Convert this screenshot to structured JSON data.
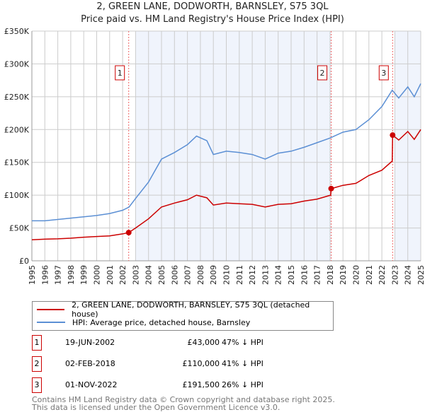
{
  "title": "2, GREEN LANE, DODWORTH, BARNSLEY, S75 3QL",
  "subtitle": "Price paid vs. HM Land Registry's House Price Index (HPI)",
  "chart_data": {
    "type": "line",
    "xlim": [
      1995,
      2025
    ],
    "ylim": [
      0,
      350000
    ],
    "yticks": [
      0,
      50000,
      100000,
      150000,
      200000,
      250000,
      300000,
      350000
    ],
    "ytick_labels": [
      "£0",
      "£50K",
      "£100K",
      "£150K",
      "£200K",
      "£250K",
      "£300K",
      "£350K"
    ],
    "xticks": [
      1995,
      1996,
      1997,
      1998,
      1999,
      2000,
      2001,
      2002,
      2003,
      2004,
      2005,
      2006,
      2007,
      2008,
      2009,
      2010,
      2011,
      2012,
      2013,
      2014,
      2015,
      2016,
      2017,
      2018,
      2019,
      2020,
      2021,
      2022,
      2023,
      2024,
      2025
    ],
    "grid": true,
    "shaded_periods": [
      [
        2003,
        2018.09
      ],
      [
        2023,
        2025
      ]
    ],
    "series": [
      {
        "name": "2, GREEN LANE, DODWORTH, BARNSLEY, S75 3QL (detached house)",
        "color": "#cc0000",
        "x": [
          1995,
          1996,
          1997,
          1998,
          1999,
          2000,
          2001,
          2002,
          2002.47,
          2003,
          2004,
          2005,
          2006,
          2007,
          2007.7,
          2008.5,
          2009,
          2010,
          2011,
          2012,
          2013,
          2014,
          2015,
          2016,
          2017,
          2018.05,
          2018.09,
          2019,
          2020,
          2021,
          2022,
          2022.8,
          2022.83,
          2023.3,
          2024,
          2024.5,
          2025
        ],
        "y": [
          32000,
          33000,
          33500,
          34500,
          36000,
          37000,
          38000,
          41000,
          43000,
          50000,
          64000,
          82000,
          88000,
          93000,
          100000,
          96000,
          85000,
          88000,
          87000,
          86000,
          82000,
          86000,
          87000,
          91000,
          94000,
          100000,
          110000,
          115000,
          118000,
          130000,
          138000,
          152000,
          191500,
          184000,
          197000,
          185000,
          200000
        ]
      },
      {
        "name": "HPI: Average price, detached house, Barnsley",
        "color": "#5b8fd4",
        "x": [
          1995,
          1996,
          1997,
          1998,
          1999,
          2000,
          2001,
          2002,
          2002.5,
          2003,
          2004,
          2005,
          2006,
          2007,
          2007.7,
          2008.5,
          2009,
          2010,
          2011,
          2012,
          2013,
          2014,
          2015,
          2016,
          2017,
          2018,
          2019,
          2020,
          2021,
          2022,
          2022.8,
          2023.3,
          2024,
          2024.5,
          2025
        ],
        "y": [
          61000,
          61000,
          63000,
          65000,
          67000,
          69000,
          72000,
          77000,
          82000,
          95000,
          120000,
          155000,
          165000,
          177000,
          190000,
          183000,
          162000,
          167000,
          165000,
          162000,
          155000,
          164000,
          167000,
          173000,
          180000,
          187000,
          196000,
          200000,
          215000,
          235000,
          260000,
          248000,
          265000,
          250000,
          270000
        ]
      }
    ],
    "sales": [
      {
        "label": "1",
        "x": 2002.47,
        "y": 43000,
        "date": "19-JUN-2002",
        "price": "£43,000",
        "hpi": "47% ↓ HPI"
      },
      {
        "label": "2",
        "x": 2018.09,
        "y": 110000,
        "date": "02-FEB-2018",
        "price": "£110,000",
        "hpi": "41% ↓ HPI"
      },
      {
        "label": "3",
        "x": 2022.83,
        "y": 191500,
        "date": "01-NOV-2022",
        "price": "£191,500",
        "hpi": "26% ↓ HPI"
      }
    ]
  },
  "footer": [
    "Contains HM Land Registry data © Crown copyright and database right 2025.",
    "This data is licensed under the Open Government Licence v3.0."
  ]
}
